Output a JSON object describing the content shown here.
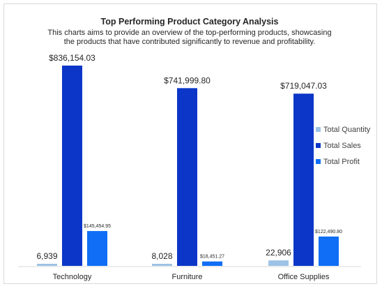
{
  "chart_data": {
    "type": "bar",
    "title": "Top Performing Product Category Analysis",
    "subtitle_lines": [
      "This charts aims to provide an overview of the top-performing products, showcasing",
      "the products that have contributed significantly to revenue and profitability."
    ],
    "categories": [
      "Technology",
      "Furniture",
      "Office Supplies"
    ],
    "series": [
      {
        "name": "Total Quantity",
        "color": "#9dc3e6",
        "values": [
          6939,
          8028,
          22906
        ],
        "labels": [
          "6,939",
          "8,028",
          "22,906"
        ]
      },
      {
        "name": "Total Sales",
        "color": "#0b36c8",
        "values": [
          836154.03,
          741999.8,
          719047.03
        ],
        "labels": [
          "$836,154.03",
          "$741,999.80",
          "$719,047.03"
        ]
      },
      {
        "name": "Total Profit",
        "color": "#0f6ef5",
        "values": [
          145454.95,
          18451.27,
          122490.8
        ],
        "labels": [
          "$145,454.95",
          "$18,451.27",
          "$122,490.80"
        ]
      }
    ],
    "ylim": [
      0,
      1000000
    ],
    "grid": false,
    "legend_position": "right"
  }
}
